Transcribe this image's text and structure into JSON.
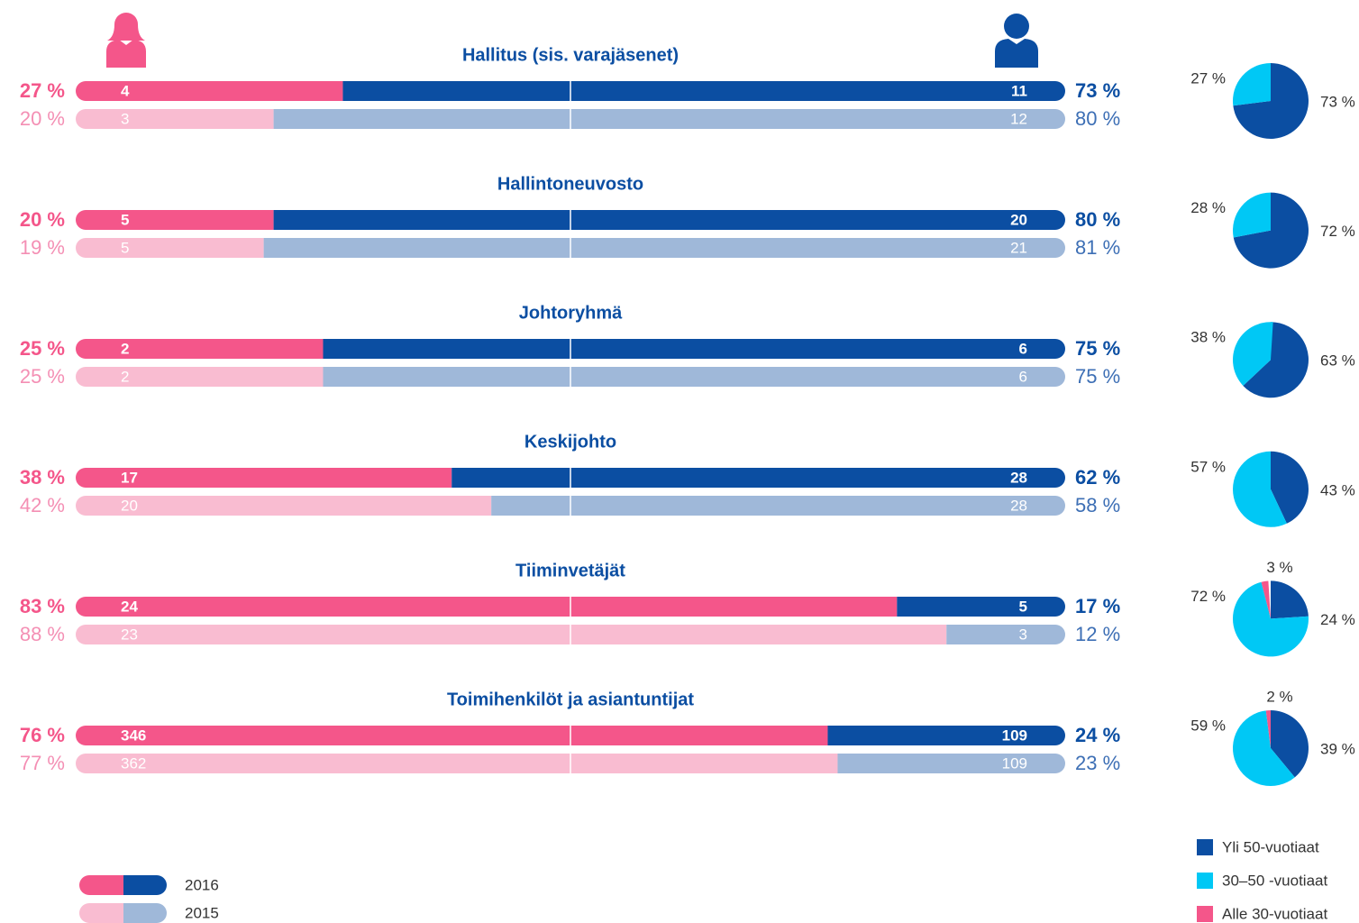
{
  "chart_data": [
    {
      "type": "split-bar",
      "categories": [
        "Hallitus (sis. varajäsenet)",
        "Hallintoneuvosto",
        "Johtoryhmä",
        "Keskijohto",
        "Tiiminvetäjät",
        "Toimihenkilöt ja asiantuntijat"
      ],
      "xlim": [
        0,
        100
      ],
      "series": [
        {
          "name": "2016",
          "colors": [
            "#f4568a",
            "#0b4ea2"
          ],
          "female": {
            "values": [
              27,
              20,
              25,
              38,
              83,
              76
            ],
            "value_labels": [
              "27 %",
              "20 %",
              "25 %",
              "38 %",
              "83 %",
              "76 %"
            ],
            "counts": [
              4,
              5,
              2,
              17,
              24,
              346
            ]
          },
          "male": {
            "values": [
              73,
              80,
              75,
              62,
              17,
              24
            ],
            "value_labels": [
              "73 %",
              "80 %",
              "75 %",
              "62 %",
              "17 %",
              "24 %"
            ],
            "counts": [
              11,
              20,
              6,
              28,
              5,
              109
            ]
          }
        },
        {
          "name": "2015",
          "colors": [
            "#f9bcd1",
            "#9fb8d9"
          ],
          "female": {
            "values": [
              20,
              19,
              25,
              42,
              88,
              77
            ],
            "value_labels": [
              "20 %",
              "19 %",
              "25 %",
              "42 %",
              "88 %",
              "77 %"
            ],
            "counts": [
              3,
              5,
              2,
              20,
              23,
              362
            ]
          },
          "male": {
            "values": [
              80,
              81,
              75,
              58,
              12,
              23
            ],
            "value_labels": [
              "80 %",
              "81 %",
              "75 %",
              "58 %",
              "12 %",
              "23 %"
            ],
            "counts": [
              12,
              21,
              6,
              28,
              3,
              109
            ]
          }
        }
      ]
    },
    {
      "type": "pie",
      "labels": [
        "Yli 50-vuotiaat",
        "30–50 -vuotiaat",
        "Alle 30-vuotiaat"
      ],
      "colors": [
        "#0b4ea2",
        "#00c8f5",
        "#f4568a"
      ],
      "pies": [
        {
          "values": [
            73,
            27
          ],
          "value_labels": [
            "73 %",
            "27 %"
          ]
        },
        {
          "values": [
            72,
            28
          ],
          "value_labels": [
            "72 %",
            "28 %"
          ]
        },
        {
          "values": [
            63,
            38
          ],
          "value_labels": [
            "63 %",
            "38 %"
          ]
        },
        {
          "values": [
            43,
            57
          ],
          "value_labels": [
            "43 %",
            "57 %"
          ]
        },
        {
          "values": [
            24,
            72,
            3
          ],
          "value_labels": [
            "24 %",
            "72 %",
            "3 %"
          ]
        },
        {
          "values": [
            39,
            59,
            2
          ],
          "value_labels": [
            "39 %",
            "59 %",
            "2 %"
          ]
        }
      ]
    }
  ]
}
